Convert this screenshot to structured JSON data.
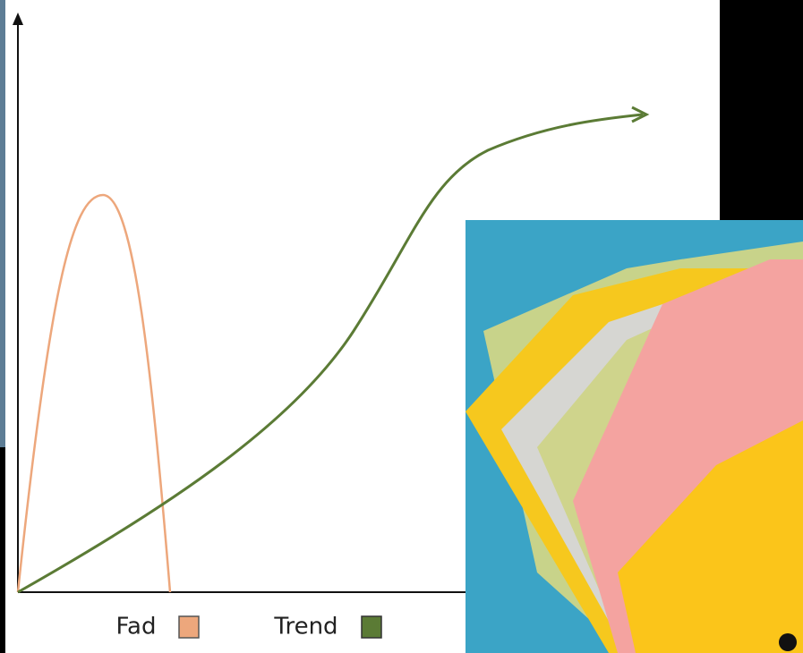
{
  "legend": {
    "items": [
      {
        "label": "Fad",
        "color": "#eda77c"
      },
      {
        "label": "Trend",
        "color": "#5b7b35"
      }
    ]
  }
}
